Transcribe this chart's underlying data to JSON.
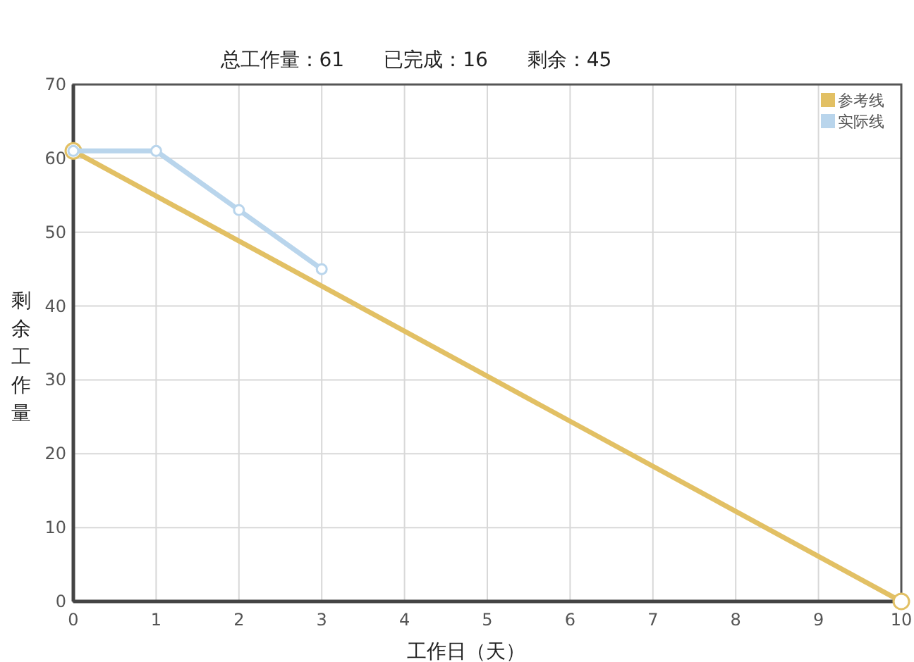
{
  "chart_data": {
    "type": "line",
    "title": "总工作量：61　　已完成：16　　剩余：45",
    "xlabel": "工作日（天）",
    "ylabel": "剩余工作量",
    "series": [
      {
        "name": "参考线",
        "color": "#e2c064",
        "x": [
          0,
          10
        ],
        "values": [
          61,
          0
        ]
      },
      {
        "name": "实际线",
        "color": "#b9d5ec",
        "x": [
          0,
          1,
          2,
          3
        ],
        "values": [
          61,
          61,
          53,
          45
        ]
      }
    ],
    "xlim": [
      0,
      10
    ],
    "xticks": [
      0,
      1,
      2,
      3,
      4,
      5,
      6,
      7,
      8,
      9,
      10
    ],
    "ylim": [
      0,
      70
    ],
    "yticks": [
      0,
      10,
      20,
      30,
      40,
      50,
      60,
      70
    ],
    "grid": true,
    "legend": "top right",
    "marker": "circle",
    "line_style": "solid"
  }
}
